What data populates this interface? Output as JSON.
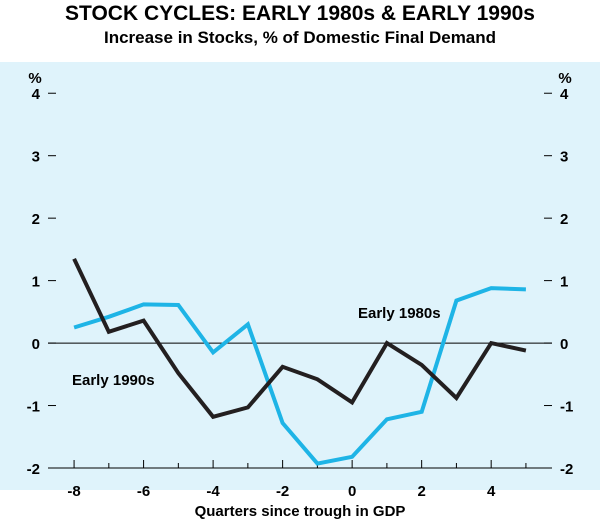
{
  "chart_data": {
    "type": "line",
    "title": "STOCK CYCLES: EARLY 1980s & EARLY 1990s",
    "subtitle": "Increase in Stocks, % of Domestic Final Demand",
    "xlabel": "Quarters since trough in GDP",
    "ylabel_left": "%",
    "ylabel_right": "%",
    "xlim": [
      -8.75,
      5.75
    ],
    "ylim": [
      -2,
      4.5
    ],
    "x_ticks": [
      -8,
      -6,
      -4,
      -2,
      0,
      2,
      4
    ],
    "y_ticks": [
      -2,
      -1,
      0,
      1,
      2,
      3,
      4
    ],
    "grid": false,
    "zero_line": true,
    "series": [
      {
        "name": "Early 1980s",
        "color": "#1eb4e6",
        "x": [
          -8,
          -7,
          -6,
          -5,
          -4,
          -3,
          -2,
          -1,
          0,
          1,
          2,
          3,
          4,
          5
        ],
        "values": [
          0.25,
          0.42,
          0.62,
          0.61,
          -0.15,
          0.3,
          -1.28,
          -1.93,
          -1.82,
          -1.22,
          -1.1,
          0.68,
          0.88,
          0.86
        ]
      },
      {
        "name": "Early 1990s",
        "color": "#231f20",
        "x": [
          -8,
          -7,
          -6,
          -5,
          -4,
          -3,
          -2,
          -1,
          0,
          1,
          2,
          3,
          4,
          5
        ],
        "values": [
          1.35,
          0.18,
          0.36,
          -0.48,
          -1.18,
          -1.03,
          -0.38,
          -0.58,
          -0.95,
          0.0,
          -0.35,
          -0.88,
          0.0,
          -0.12
        ]
      }
    ]
  }
}
